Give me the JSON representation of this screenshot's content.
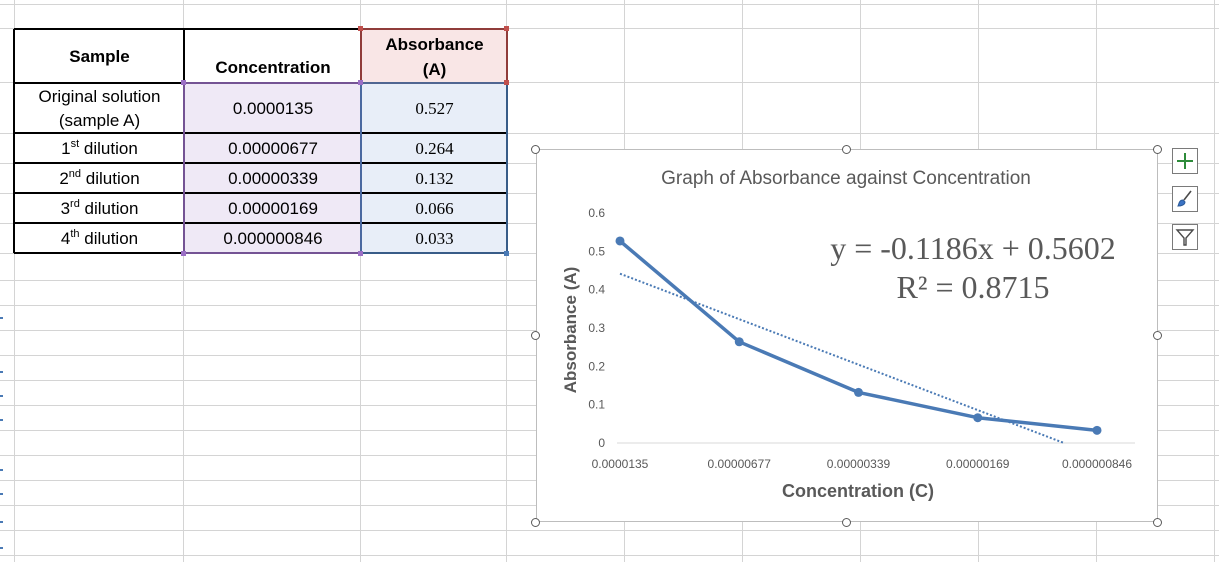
{
  "table": {
    "headers": {
      "sample": "Sample",
      "concentration": "Concentration",
      "absorbance_line1": "Absorbance",
      "absorbance_line2": "(A)"
    },
    "rows": [
      {
        "sample_line1": "Original solution",
        "sample_line2": "(sample A)",
        "concentration": "0.0000135",
        "absorbance": "0.527"
      },
      {
        "ordinal": "1",
        "ordinal_suffix": "st",
        "sample_suffix": " dilution",
        "concentration": "0.00000677",
        "absorbance": "0.264"
      },
      {
        "ordinal": "2",
        "ordinal_suffix": "nd",
        "sample_suffix": " dilution",
        "concentration": "0.00000339",
        "absorbance": "0.132"
      },
      {
        "ordinal": "3",
        "ordinal_suffix": "rd",
        "sample_suffix": " dilution",
        "concentration": "0.00000169",
        "absorbance": "0.066"
      },
      {
        "ordinal": "4",
        "ordinal_suffix": "th",
        "sample_suffix": " dilution",
        "concentration": "0.000000846",
        "absorbance": "0.033"
      }
    ]
  },
  "chart_data": {
    "type": "line",
    "title": "Graph of Absorbance against Concentration",
    "xlabel": "Concentration (C)",
    "ylabel": "Absorbance (A)",
    "categories": [
      "0.0000135",
      "0.00000677",
      "0.00000339",
      "0.00000169",
      "0.000000846"
    ],
    "series": [
      {
        "name": "Absorbance",
        "values": [
          0.527,
          0.264,
          0.132,
          0.066,
          0.033
        ],
        "color": "#4a7ab5"
      }
    ],
    "trendline": {
      "type": "linear",
      "slope": -0.1186,
      "intercept": 0.5602,
      "style": "dotted",
      "color": "#4a7ab5"
    },
    "equation": "y = -0.1186x + 0.5602",
    "r_squared": "R² = 0.8715",
    "ylim": [
      0,
      0.6
    ],
    "yticks": [
      "0",
      "0.1",
      "0.2",
      "0.3",
      "0.4",
      "0.5",
      "0.6"
    ],
    "grid": false
  },
  "chart_tools": [
    {
      "name": "chart-elements-icon",
      "label": "+"
    },
    {
      "name": "chart-styles-icon",
      "label": "brush"
    },
    {
      "name": "chart-filters-icon",
      "label": "funnel"
    }
  ],
  "colors": {
    "accent": "#4a7ab5",
    "grid": "#d4d4d4"
  }
}
